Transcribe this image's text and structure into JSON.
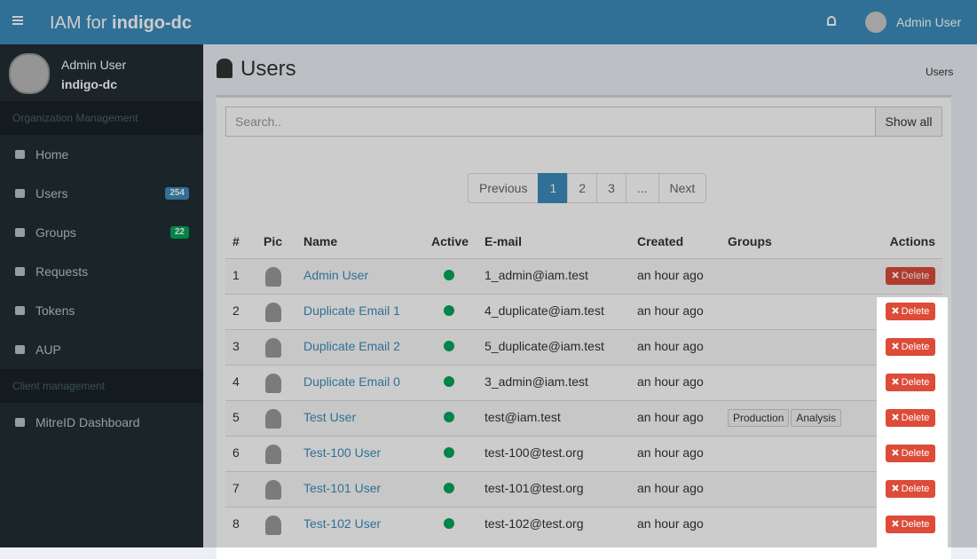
{
  "header": {
    "brand_prefix": "IAM for",
    "brand_name": "indigo-dc",
    "user": "Admin User"
  },
  "sidebar": {
    "user_name": "Admin User",
    "org": "indigo-dc",
    "sections": [
      {
        "title": "Organization Management",
        "items": [
          {
            "label": "Home"
          },
          {
            "label": "Users",
            "badge": "254"
          },
          {
            "label": "Groups",
            "badge": "22"
          },
          {
            "label": "Requests"
          },
          {
            "label": "Tokens"
          },
          {
            "label": "AUP"
          }
        ]
      },
      {
        "title": "Client management",
        "items": [
          {
            "label": "MitreID Dashboard"
          }
        ]
      }
    ]
  },
  "page": {
    "title": "Users",
    "breadcrumb": "Users"
  },
  "search": {
    "placeholder": "Search..",
    "button": "Show all"
  },
  "pagination": [
    "Previous",
    "1",
    "2",
    "3",
    "...",
    "Next"
  ],
  "table": {
    "columns": [
      "#",
      "Pic",
      "Name",
      "Active",
      "E-mail",
      "Created",
      "Groups",
      "Actions"
    ],
    "action": "Delete",
    "rows": [
      {
        "num": "1",
        "name": "Admin User",
        "email": "1_admin@iam.test",
        "created": "an hour ago"
      },
      {
        "num": "2",
        "name": "Duplicate Email 1",
        "email": "4_duplicate@iam.test",
        "created": "an hour ago"
      },
      {
        "num": "3",
        "name": "Duplicate Email 2",
        "email": "5_duplicate@iam.test",
        "created": "an hour ago"
      },
      {
        "num": "4",
        "name": "Duplicate Email 0",
        "email": "3_admin@iam.test",
        "created": "an hour ago"
      },
      {
        "num": "5",
        "name": "Test User",
        "email": "test@iam.test",
        "created": "an hour ago",
        "groups": [
          "Production",
          "Analysis"
        ]
      },
      {
        "num": "6",
        "name": "Test-100 User",
        "email": "test-100@test.org",
        "created": "an hour ago"
      },
      {
        "num": "7",
        "name": "Test-101 User",
        "email": "test-101@test.org",
        "created": "an hour ago"
      },
      {
        "num": "8",
        "name": "Test-102 User",
        "email": "test-102@test.org",
        "created": "an hour ago"
      }
    ]
  }
}
